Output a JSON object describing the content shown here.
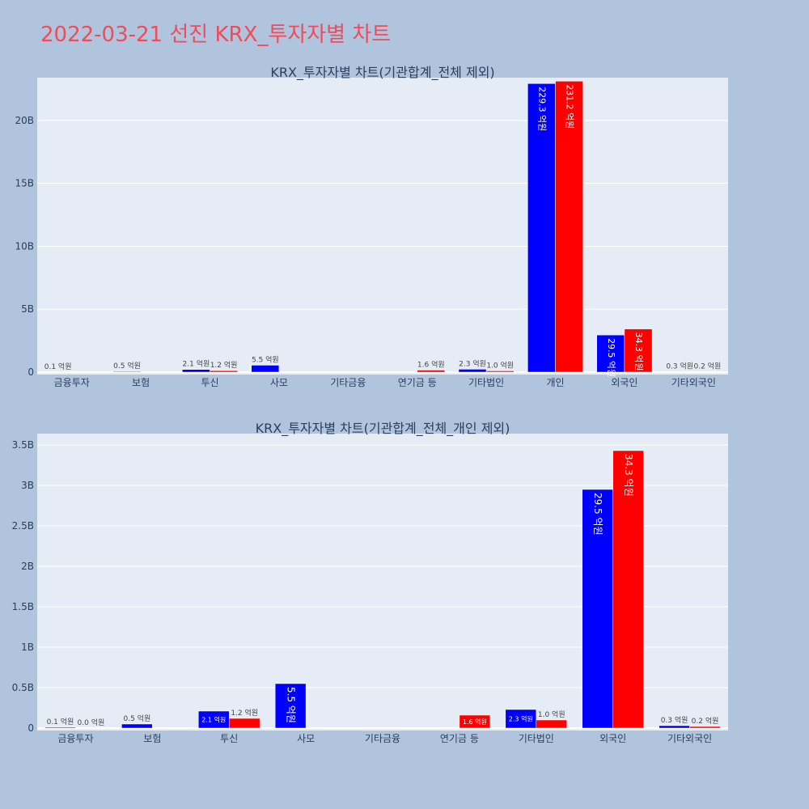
{
  "page": {
    "title": "2022-03-21 선진 KRX_투자자별 차트",
    "background": "#b0c4de",
    "title_color": "#ef4c5a"
  },
  "chart_data": [
    {
      "type": "bar",
      "title": "KRX_투자자별 차트(기관합계_전체 제외)",
      "categories": [
        "금융투자",
        "보험",
        "투신",
        "사모",
        "기타금융",
        "연기금 등",
        "기타법인",
        "개인",
        "외국인",
        "기타외국인"
      ],
      "yticks": [
        {
          "value": 0,
          "label": "0"
        },
        {
          "value": 5000000000,
          "label": "5B"
        },
        {
          "value": 10000000000,
          "label": "10B"
        },
        {
          "value": 15000000000,
          "label": "15B"
        },
        {
          "value": 20000000000,
          "label": "20B"
        }
      ],
      "ylim": [
        0,
        23400000000
      ],
      "series": [
        {
          "color": "#0000ff",
          "values": [
            10000000,
            50000000,
            210000000,
            550000000,
            0,
            0,
            230000000,
            22930000000,
            2950000000,
            30000000
          ],
          "labels": [
            "0.1 억원",
            "0.5 억원",
            "2.1 억원",
            "5.5 억원",
            "",
            "",
            "2.3 억원",
            "229.3 억원",
            "29.5 억원",
            "0.3 억원"
          ]
        },
        {
          "color": "#ff0000",
          "values": [
            0,
            0,
            120000000,
            0,
            0,
            160000000,
            100000000,
            23120000000,
            3430000000,
            20000000
          ],
          "labels": [
            "",
            "",
            "1.2 억원",
            "",
            "",
            "1.6 억원",
            "1.0 억원",
            "231.2 억원",
            "34.3 억원",
            "0.2 억원"
          ]
        }
      ],
      "legend": "none"
    },
    {
      "type": "bar",
      "title": "KRX_투자자별 차트(기관합계_전체_개인 제외)",
      "categories": [
        "금융투자",
        "보험",
        "투신",
        "사모",
        "기타금융",
        "연기금 등",
        "기타법인",
        "외국인",
        "기타외국인"
      ],
      "yticks": [
        {
          "value": 0,
          "label": "0"
        },
        {
          "value": 500000000,
          "label": "0.5B"
        },
        {
          "value": 1000000000,
          "label": "1B"
        },
        {
          "value": 1500000000,
          "label": "1.5B"
        },
        {
          "value": 2000000000,
          "label": "2B"
        },
        {
          "value": 2500000000,
          "label": "2.5B"
        },
        {
          "value": 3000000000,
          "label": "3B"
        },
        {
          "value": 3500000000,
          "label": "3.5B"
        }
      ],
      "ylim": [
        0,
        3640000000
      ],
      "series": [
        {
          "color": "#0000ff",
          "values": [
            10000000,
            50000000,
            210000000,
            550000000,
            0,
            0,
            230000000,
            2950000000,
            30000000
          ],
          "labels": [
            "0.1 억원",
            "0.5 억원",
            "2.1 억원",
            "5.5 억원",
            "",
            "",
            "2.3 억원",
            "29.5 억원",
            "0.3 억원"
          ]
        },
        {
          "color": "#ff0000",
          "values": [
            0,
            0,
            120000000,
            0,
            0,
            160000000,
            100000000,
            3430000000,
            20000000
          ],
          "labels": [
            "0.0 억원",
            "",
            "1.2 억원",
            "",
            "",
            "1.6 억원",
            "1.0 억원",
            "34.3 억원",
            "0.2 억원"
          ]
        }
      ],
      "legend": "none"
    }
  ]
}
